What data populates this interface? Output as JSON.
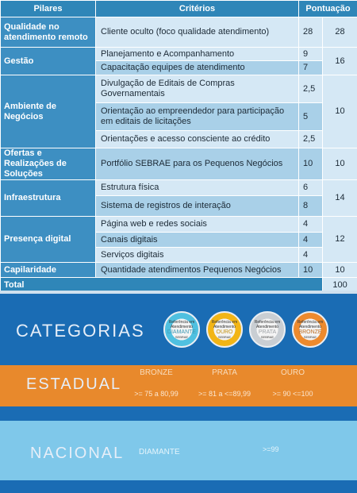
{
  "table": {
    "headers": [
      "Pilares",
      "Critérios",
      "Pontuação"
    ],
    "groups": [
      {
        "pillar": "Qualidade no atendimento remoto",
        "criteria": [
          {
            "name": "Cliente oculto (foco qualidade atendimento)",
            "points": 28
          }
        ],
        "total": 28
      },
      {
        "pillar": "Gestão",
        "criteria": [
          {
            "name": "Planejamento e Acompanhamento",
            "points": 9
          },
          {
            "name": "Capacitação equipes de atendimento",
            "points": 7
          }
        ],
        "total": 16
      },
      {
        "pillar": "Ambiente de Negócios",
        "criteria": [
          {
            "name": "Divulgação de Editais de Compras Governamentais",
            "points": "2,5"
          },
          {
            "name": "Orientação ao empreendedor para participação em editais de licitações",
            "points": 5
          },
          {
            "name": "Orientações e acesso consciente ao crédito",
            "points": "2,5"
          }
        ],
        "total": 10
      },
      {
        "pillar": "Ofertas e Realizações de Soluções",
        "criteria": [
          {
            "name": "Portfólio SEBRAE para os Pequenos Negócios",
            "points": 10
          }
        ],
        "total": 10
      },
      {
        "pillar": "Infraestrutura",
        "criteria": [
          {
            "name": "Estrutura física",
            "points": 6
          },
          {
            "name": "Sistema de registros de interação",
            "points": 8
          }
        ],
        "total": 14
      },
      {
        "pillar": "Presença digital",
        "criteria": [
          {
            "name": "Página web e redes sociais",
            "points": 4
          },
          {
            "name": "Canais digitais",
            "points": 4
          },
          {
            "name": "Serviços digitais",
            "points": 4
          }
        ],
        "total": 12
      },
      {
        "pillar": "Capilaridade",
        "criteria": [
          {
            "name": "Quantidade atendimentos Pequenos Negócios",
            "points": 10
          }
        ],
        "total": 10
      }
    ],
    "total_label": "Total",
    "total": 100
  },
  "categories": {
    "title": "CATEGORIAS",
    "badges": [
      {
        "line1": "Referência em",
        "line2": "Atendimento",
        "level": "DIAMANTE",
        "brand": "SEBRAE"
      },
      {
        "line1": "Referência em",
        "line2": "Atendimento",
        "level": "OURO",
        "brand": "SEBRAE"
      },
      {
        "line1": "Referência em",
        "line2": "Atendimento",
        "level": "PRATA",
        "brand": "SEBRAE"
      },
      {
        "line1": "Referência em",
        "line2": "Atendimento",
        "level": "BRONZE",
        "brand": "SEBRAE"
      }
    ]
  },
  "estadual": {
    "title": "ESTADUAL",
    "levels": [
      {
        "name": "BRONZE",
        "range": ">= 75 a 80,99"
      },
      {
        "name": "PRATA",
        "range": ">= 81 a <=89,99"
      },
      {
        "name": "OURO",
        "range": ">= 90 <=100"
      }
    ]
  },
  "nacional": {
    "title": "NACIONAL",
    "levels": [
      {
        "name": "DIAMANTE",
        "range": ">=99"
      }
    ]
  }
}
